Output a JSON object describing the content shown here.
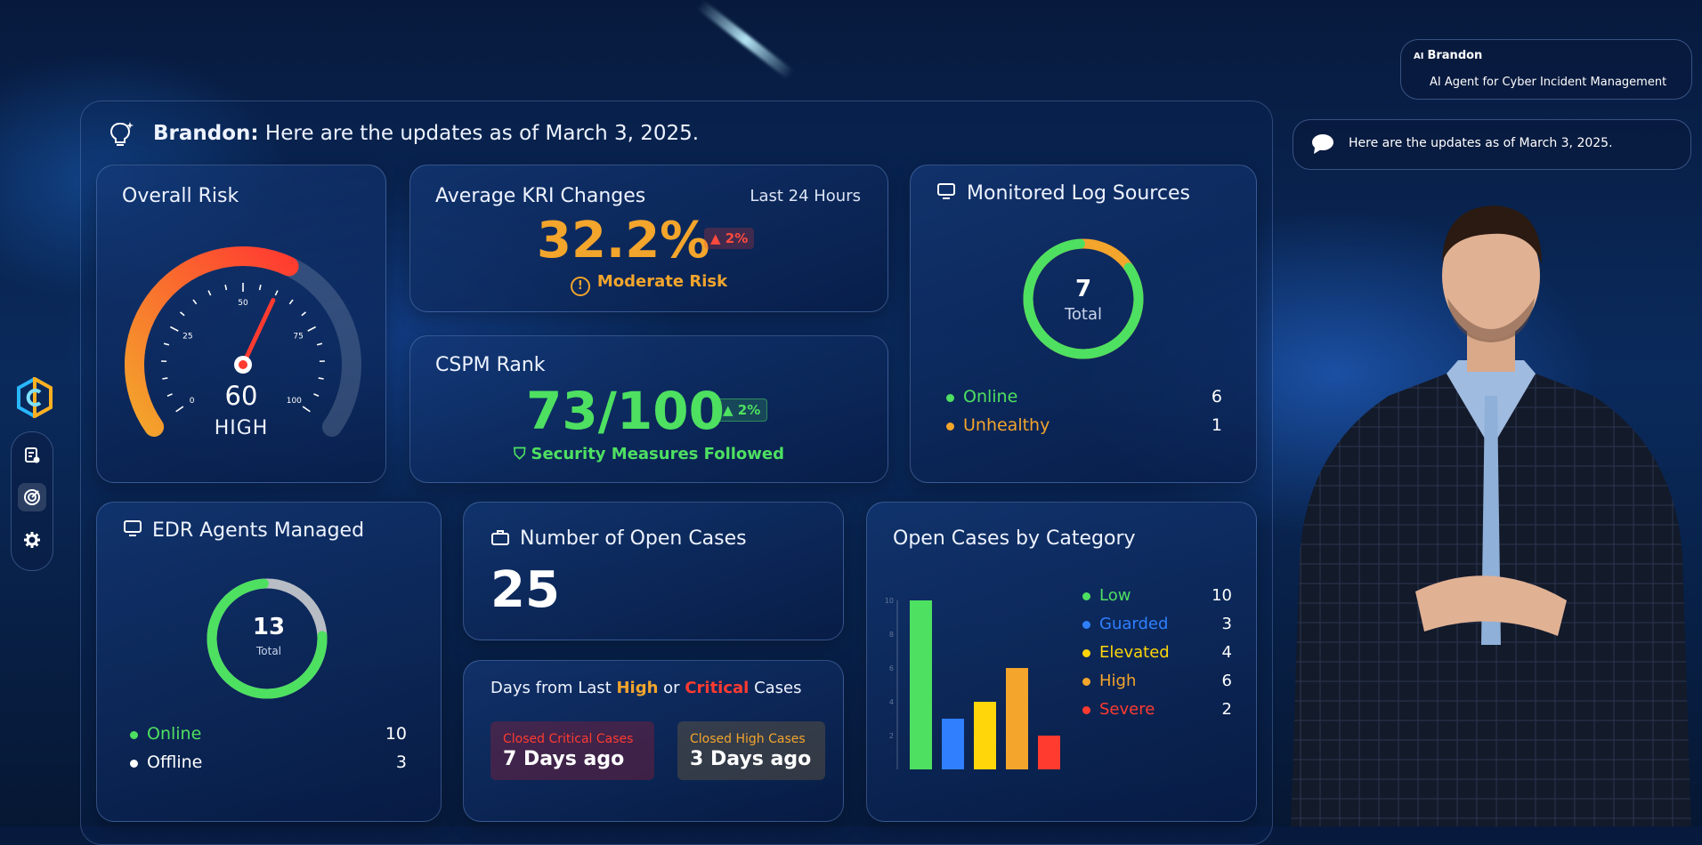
{
  "header": {
    "agent_name": "Brandon:",
    "message": "Here are the updates as of March 3, 2025."
  },
  "agent_panel": {
    "badge_icon": "AI",
    "name": "Brandon",
    "role": "AI Agent for Cyber Incident Management",
    "chat_message": "Here are the updates as of March 3, 2025."
  },
  "overall_risk": {
    "title": "Overall Risk",
    "value": "60",
    "level": "HIGH",
    "value_fraction": 0.6,
    "tick_labels": [
      "0",
      "25",
      "50",
      "75",
      "100"
    ]
  },
  "kri": {
    "title": "Average KRI Changes",
    "period": "Last 24 Hours",
    "value": "32.2%",
    "change": "2%",
    "status": "Moderate Risk"
  },
  "cspm": {
    "title": "CSPM Rank",
    "value": "73/100",
    "change": "2%",
    "status": "Security Measures Followed"
  },
  "log_sources": {
    "title": "Monitored Log Sources",
    "total": "7",
    "total_label": "Total",
    "online_label": "Online",
    "online": "6",
    "unhealthy_label": "Unhealthy",
    "unhealthy": "1",
    "online_fraction": 0.857
  },
  "edr": {
    "title": "EDR Agents Managed",
    "total": "13",
    "total_label": "Total",
    "online_label": "Online",
    "online": "10",
    "offline_label": "Offline",
    "offline": "3",
    "online_fraction": 0.769
  },
  "open_cases": {
    "title": "Number of Open Cases",
    "value": "25"
  },
  "days_since": {
    "prefix": "Days from Last",
    "high_word": "High",
    "or_word": "or",
    "critical_word": "Critical",
    "suffix": "Cases",
    "critical_label": "Closed Critical Cases",
    "critical_value": "7 Days ago",
    "high_label": "Closed High Cases",
    "high_value": "3 Days ago"
  },
  "colors": {
    "green": "#4ee061",
    "orange": "#f3a52c",
    "red": "#ff3b30",
    "blue": "#2f7fff",
    "yellow": "#ffd60a"
  },
  "chart_data": {
    "type": "bar",
    "title": "Open Cases by Category",
    "categories": [
      "Low",
      "Guarded",
      "Elevated",
      "High",
      "Severe"
    ],
    "values": [
      10,
      3,
      4,
      6,
      2
    ],
    "value_labels": [
      "10",
      "3",
      "4",
      "6",
      "2"
    ],
    "colors": [
      "#4ee061",
      "#2f7fff",
      "#ffd60a",
      "#f3a52c",
      "#ff3b30"
    ],
    "y_ticks": [
      "2",
      "4",
      "6",
      "8",
      "10"
    ],
    "ylim": [
      0,
      10
    ]
  }
}
